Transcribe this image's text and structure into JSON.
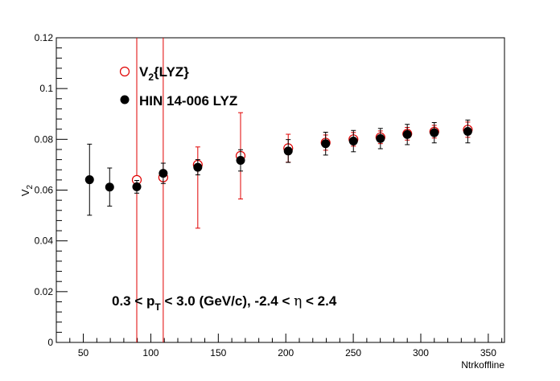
{
  "chart_data": {
    "type": "scatter",
    "xlabel": "Ntrkoffline",
    "ylabel": "V",
    "ylabel_sub": "2",
    "xlim": [
      30,
      362
    ],
    "ylim": [
      0,
      0.12
    ],
    "x_ticks": [
      50,
      100,
      150,
      200,
      250,
      300,
      350
    ],
    "y_ticks": [
      0,
      0.02,
      0.04,
      0.06,
      0.08,
      0.1,
      0.12
    ],
    "x_tick_labels": [
      "50",
      "100",
      "150",
      "200",
      "250",
      "300",
      "350"
    ],
    "y_tick_labels": [
      "0",
      "0.02",
      "0.04",
      "0.06",
      "0.08",
      "0.1",
      "0.12"
    ],
    "grid": false,
    "legend_position": "top-left",
    "legend": [
      {
        "main": "V",
        "sub": "2",
        "rest": "{LYZ}",
        "marker": "open-circle",
        "color": "#e00000"
      },
      {
        "main": "HIN 14-006 LYZ",
        "sub": "",
        "rest": "",
        "marker": "filled-circle",
        "color": "#000000"
      }
    ],
    "annotation": {
      "p1": "0.3 < p",
      "sub": "T",
      "p2": " < 3.0 (GeV/c), -2.4 < ",
      "eta": "η",
      "p3": " < 2.4"
    },
    "series": [
      {
        "marker": "open-circle",
        "color": "#e00000",
        "x": [
          89.6,
          109.2,
          134.8,
          166.5,
          201.8,
          229.5,
          250.1,
          270.1,
          290.0,
          310.0,
          334.8
        ],
        "y": [
          0.064,
          0.065,
          0.07,
          0.0735,
          0.0765,
          0.0787,
          0.08,
          0.0808,
          0.0822,
          0.083,
          0.0838
        ],
        "err_low": [
          0.064,
          0.065,
          0.025,
          0.017,
          0.0055,
          0.003,
          0.0027,
          0.0025,
          0.0025,
          0.0025,
          0.003
        ],
        "err_high": [
          0.056,
          0.055,
          0.007,
          0.017,
          0.0055,
          0.003,
          0.0027,
          0.0025,
          0.0025,
          0.0025,
          0.003
        ]
      },
      {
        "marker": "filled-circle",
        "color": "#000000",
        "x": [
          54.6,
          69.5,
          89.6,
          109.2,
          134.8,
          166.5,
          201.8,
          229.5,
          250.1,
          270.1,
          290.0,
          310.0,
          334.8
        ],
        "y": [
          0.0641,
          0.0612,
          0.0613,
          0.0666,
          0.069,
          0.0717,
          0.0754,
          0.0783,
          0.0793,
          0.0803,
          0.0819,
          0.0826,
          0.0831
        ],
        "err_low": [
          0.014,
          0.0075,
          0.0025,
          0.004,
          0.003,
          0.0042,
          0.0045,
          0.0045,
          0.0042,
          0.004,
          0.004,
          0.004,
          0.0045
        ],
        "err_high": [
          0.014,
          0.0075,
          0.0025,
          0.004,
          0.003,
          0.0042,
          0.0045,
          0.0045,
          0.0042,
          0.004,
          0.004,
          0.004,
          0.0045
        ]
      }
    ]
  }
}
